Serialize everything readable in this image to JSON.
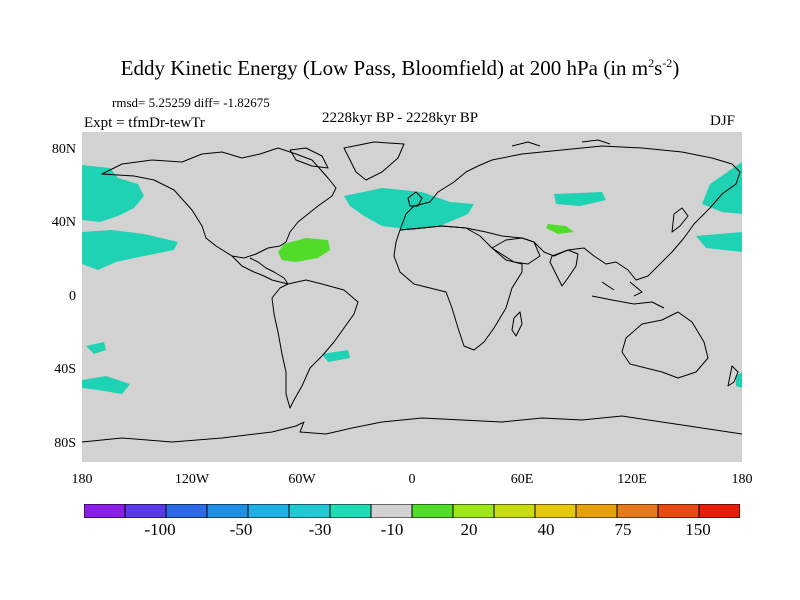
{
  "title": {
    "main": "Eddy Kinetic Energy (Low Pass, Bloomfield) at 200 hPa (in m",
    "sup1": "2",
    "mid": "s",
    "sup2": "-2",
    "close": ")"
  },
  "stats": "rmsd= 5.25259 diff= -1.82675",
  "period": "2228kyr BP - 2228kyr BP",
  "experiment": "Expt = tfmDr-tewTr",
  "season": "DJF",
  "y_axis_labels": [
    "80N",
    "40N",
    "0",
    "40S",
    "80S"
  ],
  "x_axis_labels": [
    "180",
    "120W",
    "60W",
    "0",
    "60E",
    "120E",
    "180"
  ],
  "colorbar": {
    "labels": [
      "-100",
      "-50",
      "-30",
      "-10",
      "20",
      "40",
      "75",
      "150"
    ],
    "colors": [
      "#8a1ee6",
      "#5a3ae6",
      "#2d6ae6",
      "#1f8fe6",
      "#1fb0e6",
      "#1fc8d2",
      "#1fdcb4",
      "#d2d2d2",
      "#50dc28",
      "#9ee616",
      "#c8dc10",
      "#e6c80a",
      "#e6a00a",
      "#e6781e",
      "#e64a10",
      "#e61e0a"
    ]
  },
  "map": {
    "background": "#d2d2d2",
    "negative_fill": "#20d2b4",
    "positive_fill": "#50dc28"
  }
}
